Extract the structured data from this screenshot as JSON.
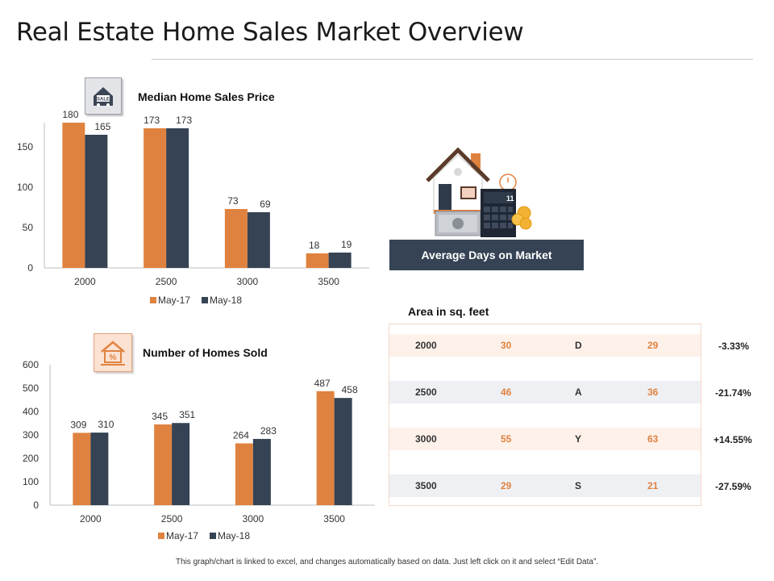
{
  "page": {
    "title": "Real Estate Home Sales Market Overview",
    "footnote": "This graph/chart is linked to excel, and changes automatically based on data. Just left click on it and select “Edit Data”."
  },
  "colors": {
    "may17": "#e0823f",
    "may18": "#354354",
    "accent": "#e0823f",
    "dark": "#354354"
  },
  "icons": {
    "chart1": "house-sale-sign-icon",
    "chart2": "house-percent-icon",
    "illustration": "house-calculator-money-icon"
  },
  "market": {
    "banner": "Average Days on Market"
  },
  "area_table": {
    "label": "Area in sq. feet",
    "rows": [
      {
        "area": "2000",
        "may17": "30",
        "letter": "D",
        "may18": "29",
        "change": "-3.33%"
      },
      {
        "area": "2500",
        "may17": "46",
        "letter": "A",
        "may18": "36",
        "change": "-21.74%"
      },
      {
        "area": "3000",
        "may17": "55",
        "letter": "Y",
        "may18": "63",
        "change": "+14.55%"
      },
      {
        "area": "3500",
        "may17": "29",
        "letter": "S",
        "may18": "21",
        "change": "-27.59%"
      }
    ]
  },
  "chart_data": [
    {
      "type": "bar",
      "title": "Median Home Sales Price",
      "categories": [
        "2000",
        "2500",
        "3000",
        "3500"
      ],
      "series": [
        {
          "name": "May-17",
          "values": [
            180,
            173,
            73,
            18
          ]
        },
        {
          "name": "May-18",
          "values": [
            165,
            173,
            69,
            19
          ]
        }
      ],
      "yticks": [
        0,
        50,
        100,
        150
      ],
      "ylim": [
        0,
        180
      ],
      "grid": false,
      "legend": "bottom"
    },
    {
      "type": "bar",
      "title": "Number of Homes Sold",
      "categories": [
        "2000",
        "2500",
        "3000",
        "3500"
      ],
      "series": [
        {
          "name": "May-17",
          "values": [
            309,
            345,
            264,
            487
          ]
        },
        {
          "name": "May-18",
          "values": [
            310,
            351,
            283,
            458
          ]
        }
      ],
      "yticks": [
        0,
        100,
        200,
        300,
        400,
        500,
        600
      ],
      "ylim": [
        0,
        600
      ],
      "grid": false,
      "legend": "bottom"
    }
  ]
}
